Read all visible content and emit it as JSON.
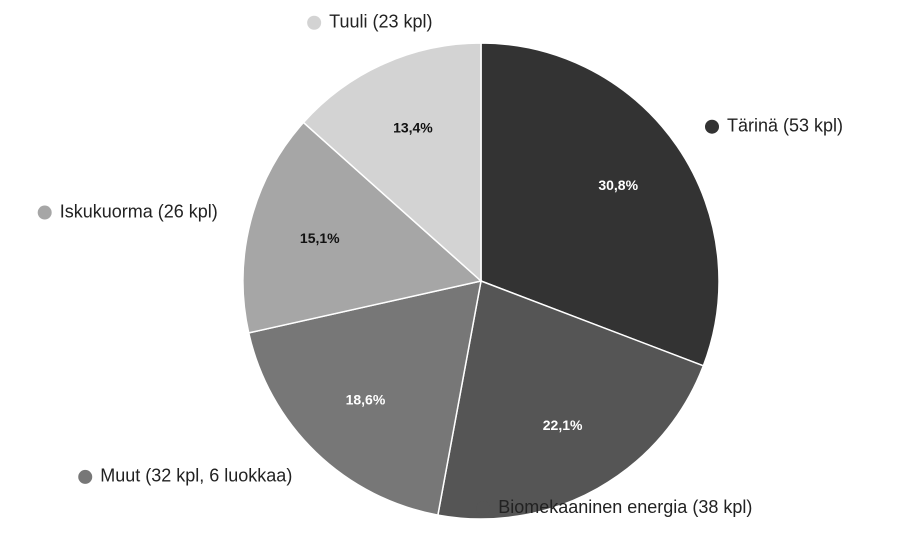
{
  "chart_data": {
    "type": "pie",
    "categories": [
      "Tärinä (53 kpl)",
      "Biomekaaninen energia (38 kpl)",
      "Muut (32 kpl, 6 luokkaa)",
      "Iskukuorma (26 kpl)",
      "Tuuli (23 kpl)"
    ],
    "values": [
      30.8,
      22.1,
      18.6,
      15.1,
      13.4
    ],
    "value_labels": [
      "30,8%",
      "22,1%",
      "18,6%",
      "15,1%",
      "13,4%"
    ],
    "colors": [
      "#333333",
      "#555555",
      "#777777",
      "#a6a6a6",
      "#d3d3d3"
    ]
  }
}
